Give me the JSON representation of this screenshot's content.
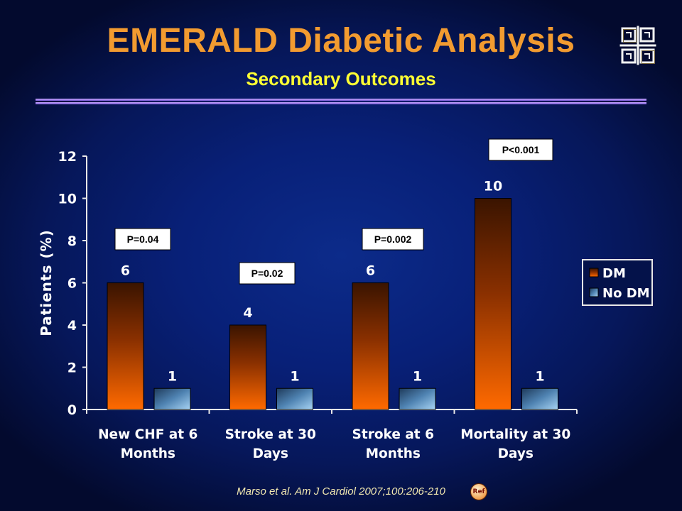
{
  "slide": {
    "title": "EMERALD Diabetic Analysis",
    "subtitle": "Secondary Outcomes",
    "citation": "Marso et al. Am J Cardiol 2007;100:206-210",
    "ref_icon_label": "Ref",
    "logo_icon": "ornamental-logo-icon"
  },
  "colors": {
    "background": "#0a2378",
    "title": "#f29b30",
    "subtitle": "#ffff33",
    "dm_bar_top": "#3a1400",
    "dm_bar_bottom": "#ff6a00",
    "nodm_bar_top": "#1e3a5a",
    "nodm_bar_bottom": "#8cc4ec"
  },
  "chart_data": {
    "type": "bar",
    "title": "",
    "xlabel": "",
    "ylabel": "Patients (%)",
    "ylim": [
      0,
      12
    ],
    "yticks": [
      0,
      2,
      4,
      6,
      8,
      10,
      12
    ],
    "categories": [
      "New CHF at 6 Months",
      "Stroke at 30 Days",
      "Stroke at 6 Months",
      "Mortality at 30 Days"
    ],
    "category_lines": [
      [
        "New CHF at 6",
        "Months"
      ],
      [
        "Stroke at 30",
        "Days"
      ],
      [
        "Stroke at 6",
        "Months"
      ],
      [
        "Mortality at 30",
        "Days"
      ]
    ],
    "series": [
      {
        "name": "DM",
        "values": [
          6,
          4,
          6,
          10
        ]
      },
      {
        "name": "No DM",
        "values": [
          1,
          1,
          1,
          1
        ]
      }
    ],
    "annotations": [
      "P=0.04",
      "P=0.02",
      "P=0.002",
      "P<0.001"
    ],
    "legend_position": "right",
    "grid": false
  }
}
